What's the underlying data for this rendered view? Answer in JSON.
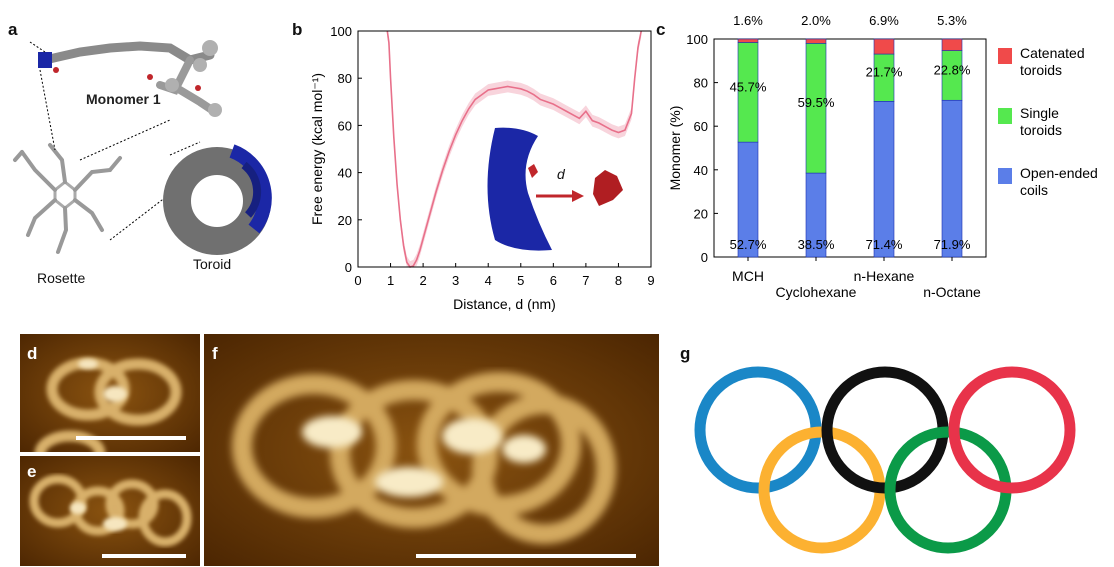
{
  "panels": {
    "a": {
      "label": "a",
      "monomer_label": "Monomer 1",
      "rosette_label": "Rosette",
      "toroid_label": "Toroid",
      "colors": {
        "gray": "#8a8a8a",
        "blue": "#1b27a6",
        "red": "#c0262b"
      }
    },
    "b": {
      "label": "b",
      "inset_label": "d"
    },
    "c": {
      "label": "c"
    },
    "d": {
      "label": "d"
    },
    "e": {
      "label": "e"
    },
    "f": {
      "label": "f"
    },
    "g": {
      "label": "g",
      "ring_colors": [
        "#1a87c7",
        "#fcb131",
        "#111111",
        "#0b9a48",
        "#e8334a"
      ]
    }
  },
  "chart_data": [
    {
      "id": "b",
      "type": "line",
      "title": "",
      "xlabel": "Distance, d (nm)",
      "ylabel": "Free energy (kcal mol⁻¹)",
      "xlim": [
        0,
        9
      ],
      "ylim": [
        0,
        100
      ],
      "xticks": [
        0,
        1,
        2,
        3,
        4,
        5,
        6,
        7,
        8,
        9
      ],
      "yticks": [
        0,
        20,
        40,
        60,
        80,
        100
      ],
      "grid": false,
      "series": [
        {
          "color": "#e8708a",
          "band_halfwidth": 2.5,
          "x": [
            0.9,
            0.95,
            1.0,
            1.1,
            1.2,
            1.3,
            1.4,
            1.5,
            1.6,
            1.7,
            1.8,
            1.9,
            2.0,
            2.2,
            2.4,
            2.6,
            2.8,
            3.0,
            3.2,
            3.4,
            3.6,
            3.8,
            4.0,
            4.2,
            4.4,
            4.6,
            4.8,
            5.0,
            5.2,
            5.4,
            5.6,
            5.8,
            6.0,
            6.2,
            6.4,
            6.6,
            6.8,
            7.0,
            7.2,
            7.4,
            7.6,
            7.8,
            8.0,
            8.2,
            8.4,
            8.5,
            8.6,
            8.7
          ],
          "y": [
            100,
            95,
            80,
            55,
            35,
            20,
            9,
            2,
            0,
            0.5,
            3,
            7,
            12,
            22,
            32,
            41,
            49,
            56,
            62,
            67,
            71,
            73,
            75,
            75.5,
            76,
            76.5,
            76,
            75.5,
            74.5,
            73,
            71,
            70,
            69,
            67.5,
            66,
            64.5,
            63,
            66,
            62,
            61,
            59.5,
            58,
            57,
            58,
            65,
            80,
            93,
            100
          ]
        }
      ]
    },
    {
      "id": "c",
      "type": "bar",
      "stacked": true,
      "title": "",
      "xlabel": "",
      "ylabel": "Monomer (%)",
      "ylim": [
        0,
        100
      ],
      "yticks": [
        0,
        20,
        40,
        60,
        80,
        100
      ],
      "grid": false,
      "legend_position": "right",
      "categories": [
        "MCH",
        "Cyclohexane",
        "n-Hexane",
        "n-Octane"
      ],
      "series": [
        {
          "name": "Open-ended coils",
          "color": "#5b7ee8",
          "values": [
            52.7,
            38.5,
            71.4,
            71.9
          ],
          "labels": [
            "52.7%",
            "38.5%",
            "71.4%",
            "71.9%"
          ]
        },
        {
          "name": "Single toroids",
          "color": "#55e84f",
          "values": [
            45.7,
            59.5,
            21.7,
            22.8
          ],
          "labels": [
            "45.7%",
            "59.5%",
            "21.7%",
            "22.8%"
          ]
        },
        {
          "name": "Catenated toroids",
          "color": "#f04a4a",
          "values": [
            1.6,
            2.0,
            6.9,
            5.3
          ],
          "labels": [
            "1.6%",
            "2.0%",
            "6.9%",
            "5.3%"
          ]
        }
      ]
    }
  ]
}
